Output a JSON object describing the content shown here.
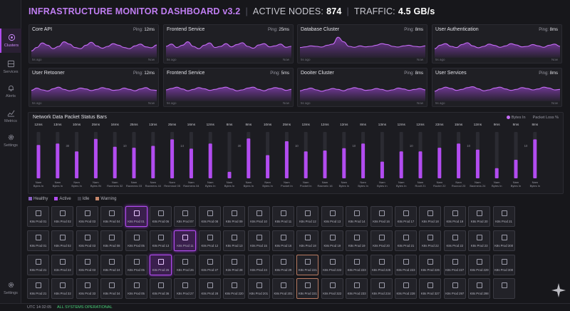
{
  "header": {
    "title": "INFRASTRUCTURE MONITOR DASHBOARD v3.2",
    "nodes_label": "ACTIVE NODES:",
    "nodes_value": "874",
    "traffic_label": "TRAFFIC:",
    "traffic_value": "4.5 GB/s"
  },
  "sidebar": {
    "items": [
      {
        "label": "Clusters",
        "icon": "cluster-icon",
        "active": true
      },
      {
        "label": "Services",
        "icon": "services-icon"
      },
      {
        "label": "Alerts",
        "icon": "bell-icon"
      },
      {
        "label": "Metrics",
        "icon": "chart-icon"
      },
      {
        "label": "Settings",
        "icon": "gear-icon"
      }
    ],
    "bottom": {
      "label": "Settings",
      "icon": "gear-icon"
    }
  },
  "services": [
    {
      "name": "Core API",
      "ping_label": "Ping:",
      "ping": "12ms",
      "start": "5s ago",
      "end": "Now",
      "series": [
        30,
        45,
        65,
        55,
        40,
        50,
        70,
        60,
        45,
        40,
        55,
        68,
        52,
        42,
        50,
        62,
        55,
        45,
        40,
        52,
        60,
        48,
        44,
        56
      ]
    },
    {
      "name": "Frontend Service",
      "ping_label": "Ping:",
      "ping": "25ms",
      "start": "5s ago",
      "end": "Now",
      "series": [
        50,
        60,
        45,
        55,
        70,
        50,
        40,
        55,
        65,
        45,
        50,
        62,
        48,
        58,
        66,
        50,
        42,
        56,
        62,
        48,
        52,
        60,
        46,
        50
      ]
    },
    {
      "name": "Database Cluster",
      "ping_label": "Ping:",
      "ping": "8ms",
      "start": "5s ago",
      "end": "Now",
      "series": [
        45,
        48,
        52,
        50,
        47,
        55,
        60,
        90,
        70,
        50,
        46,
        52,
        48,
        50,
        55,
        62,
        58,
        50,
        47,
        52,
        55,
        50,
        48,
        52
      ]
    },
    {
      "name": "User Authentication",
      "ping_label": "Ping:",
      "ping": "8ms",
      "start": "5s ago",
      "end": "Now",
      "series": [
        40,
        55,
        62,
        50,
        45,
        58,
        66,
        52,
        44,
        50,
        60,
        54,
        46,
        52,
        62,
        56,
        48,
        50,
        58,
        52,
        46,
        55,
        60,
        50
      ]
    },
    {
      "name": "User Retooner",
      "ping_label": "Ping:",
      "ping": "12ms",
      "start": "5s ago",
      "end": "Now",
      "series": [
        48,
        58,
        50,
        45,
        55,
        62,
        52,
        46,
        50,
        58,
        54,
        47,
        52,
        60,
        55,
        48,
        50,
        58,
        52,
        46,
        54,
        60,
        50,
        48
      ]
    },
    {
      "name": "Frontend Service",
      "ping_label": "Ping:",
      "ping": "5ms",
      "start": "5s ago",
      "end": "Now",
      "series": [
        50,
        56,
        62,
        54,
        46,
        52,
        60,
        55,
        48,
        52,
        58,
        62,
        54,
        46,
        50,
        58,
        62,
        52,
        46,
        54,
        60,
        56,
        48,
        52
      ]
    },
    {
      "name": "Dooiter Cluster",
      "ping_label": "Ping:",
      "ping": "8ms",
      "start": "5s ago",
      "end": "Now",
      "series": [
        46,
        52,
        58,
        50,
        44,
        50,
        56,
        52,
        46,
        54,
        60,
        55,
        48,
        50,
        56,
        52,
        46,
        50,
        58,
        54,
        48,
        52,
        56,
        50
      ]
    },
    {
      "name": "User Services",
      "ping_label": "Ping:",
      "ping": "8ms",
      "start": "5s ago",
      "end": "Now",
      "series": [
        44,
        54,
        62,
        56,
        48,
        52,
        60,
        64,
        55,
        46,
        50,
        58,
        62,
        54,
        48,
        52,
        60,
        56,
        50,
        54,
        62,
        58,
        50,
        52
      ]
    }
  ],
  "chart_data": {
    "type": "bar",
    "title": "Network Data Packet Status Bars",
    "legend": [
      "Bytes In",
      "Packet Loss %"
    ],
    "legend_placement": "top-right",
    "ylim": [
      0,
      100
    ],
    "categories": [
      "Nam Bytes In",
      "Nam Bytes In",
      "Nam Bytes In",
      "Nam Bytes IN",
      "Nam Raxmexs 32",
      "Nam Raxmexs 03",
      "Nam Raxmexs 44",
      "Nam Rexmnod 05",
      "Nam Raxmexs 04",
      "Nam Bytes In",
      "Nam Bytes In",
      "Nam Bytes In",
      "Nam Bytes In",
      "Nam Pocket In",
      "Nam Pocket In",
      "Nam Raxmeix 16",
      "Nam Bytes In",
      "Nam Bytes In",
      "Nam Bytes In",
      "Nam Bytes In",
      "Nam Rooit 21",
      "Nam Rocter 22",
      "Nam Rocrooi 23",
      "Nam Baxmexs 24",
      "Nam Bytes In",
      "Nam Bytes In",
      "Nam Bytes In"
    ],
    "latency": [
      "12ms",
      "13ms",
      "10ms",
      "25ms",
      "16ms",
      "25ms",
      "13ms",
      "25ms",
      "16ms",
      "12ms",
      "8ms",
      "8ms",
      "10ms",
      "25ms",
      "13ms",
      "12ms",
      "12ms",
      "8ms",
      "13ms",
      "12ms",
      "12ms",
      "22ms",
      "15ms",
      "12ms",
      "9ms",
      "8ms",
      "8ms"
    ],
    "values": [
      72,
      75,
      58,
      85,
      68,
      66,
      70,
      84,
      64,
      75,
      14,
      86,
      50,
      80,
      58,
      60,
      65,
      75,
      36,
      58,
      58,
      66,
      75,
      62,
      22,
      40,
      84
    ],
    "scale_labels": [
      "30",
      "10",
      "14",
      "30",
      "10",
      "10",
      "10",
      "10",
      "10"
    ]
  },
  "nodes_legend": [
    {
      "label": "Healthy",
      "color": "#8a5fc4"
    },
    {
      "label": "Active",
      "color": "#b24cf0"
    },
    {
      "label": "Idle",
      "color": "#3c3c45"
    },
    {
      "label": "Warning",
      "color": "#c7876b"
    }
  ],
  "nodes": [
    [
      "K8s Prod 01",
      "K8s Prod 02",
      "K8s Prod 03",
      "K8s Prod 04",
      "K8s Prod 01",
      "K8s Prod 06",
      "K8s Prod 07",
      "K8s Prod 08",
      "K8s Prod 09",
      "K8s Prod 10",
      "K8s Prod 11",
      "K8s Prod 12",
      "K8s Prod 13",
      "K8s Prod 14",
      "K8s Prod 16",
      "K8s Prod 17",
      "K8s Prod 18",
      "K8s Prod 19",
      "K8s Prod 20",
      "K8s Prod 21"
    ],
    [
      "K8s Prod 01",
      "K8s Prod 02",
      "K8s Prod 03",
      "K8s Prod 08",
      "K8s Prod 05",
      "K8s Prod 13",
      "K8s Prod 11",
      "K8s Prod 12",
      "K8s Prod 13",
      "K8s Prod 15",
      "K8s Prod 16",
      "K8s Prod 18",
      "K8s Prod 19",
      "K8s Prod 19",
      "K8s Prod 20",
      "K8s Prod 21",
      "K8s Prod 22",
      "K8s Prod 22",
      "K8s Prod 23",
      "K8s Prod 300"
    ],
    [
      "K8s Prod 21",
      "E3s Prod 22",
      "K8s Prod 03",
      "K8s Prod 24",
      "K8s Prod 05",
      "K8s Prod 26",
      "K8s Prod 26",
      "K8s Prod 27",
      "K3s Prod 28",
      "K8s Prod 24",
      "K8s Prod 29",
      "K8s Prod 221",
      "K8s Prod 222",
      "K8s Prod 223",
      "K8s Prod 225",
      "K8s Prod 223",
      "K8s Prod 226",
      "K8s Prod 227",
      "K8s Prod 229",
      "K8s Prod 300"
    ],
    [
      "K8s Prod 21",
      "K8s Prod 32",
      "K8s Prod 33",
      "K8s Prod 34",
      "K8s Prod 05",
      "K8s Prod 36",
      "K8s Prod 27",
      "K8s Prod 28",
      "K8s Prod 220",
      "K8s Prod 201",
      "K8s Prod 201",
      "K8s Prod 221",
      "K8s Prod 322",
      "K8s Prod 233",
      "K8s Prod 234",
      "K8s Prod 228",
      "K8s Prod 327",
      "K8s Prod 297",
      "K8s Prod 298",
      ""
    ]
  ],
  "node_states": [
    [
      "h",
      "h",
      "h",
      "h",
      "a",
      "h",
      "h",
      "h",
      "h",
      "h",
      "h",
      "h",
      "h",
      "h",
      "h",
      "h",
      "h",
      "h",
      "h",
      "h"
    ],
    [
      "h",
      "h",
      "h",
      "h",
      "h",
      "h",
      "a",
      "h",
      "h",
      "h",
      "h",
      "h",
      "h",
      "h",
      "h",
      "h",
      "h",
      "h",
      "h",
      "h"
    ],
    [
      "h",
      "h",
      "h",
      "h",
      "h",
      "a",
      "h",
      "h",
      "h",
      "h",
      "h",
      "w",
      "h",
      "h",
      "h",
      "h",
      "h",
      "h",
      "h",
      "h"
    ],
    [
      "h",
      "h",
      "h",
      "h",
      "h",
      "h",
      "h",
      "h",
      "h",
      "h",
      "h",
      "w",
      "h",
      "h",
      "h",
      "h",
      "h",
      "h",
      "h",
      "h"
    ]
  ],
  "footer": {
    "time": "UTC 14:32:05",
    "status": "ALL SYSTEMS OPERATIONAL"
  },
  "colors": {
    "accent": "#b24cf0",
    "ok": "#49d37a"
  }
}
